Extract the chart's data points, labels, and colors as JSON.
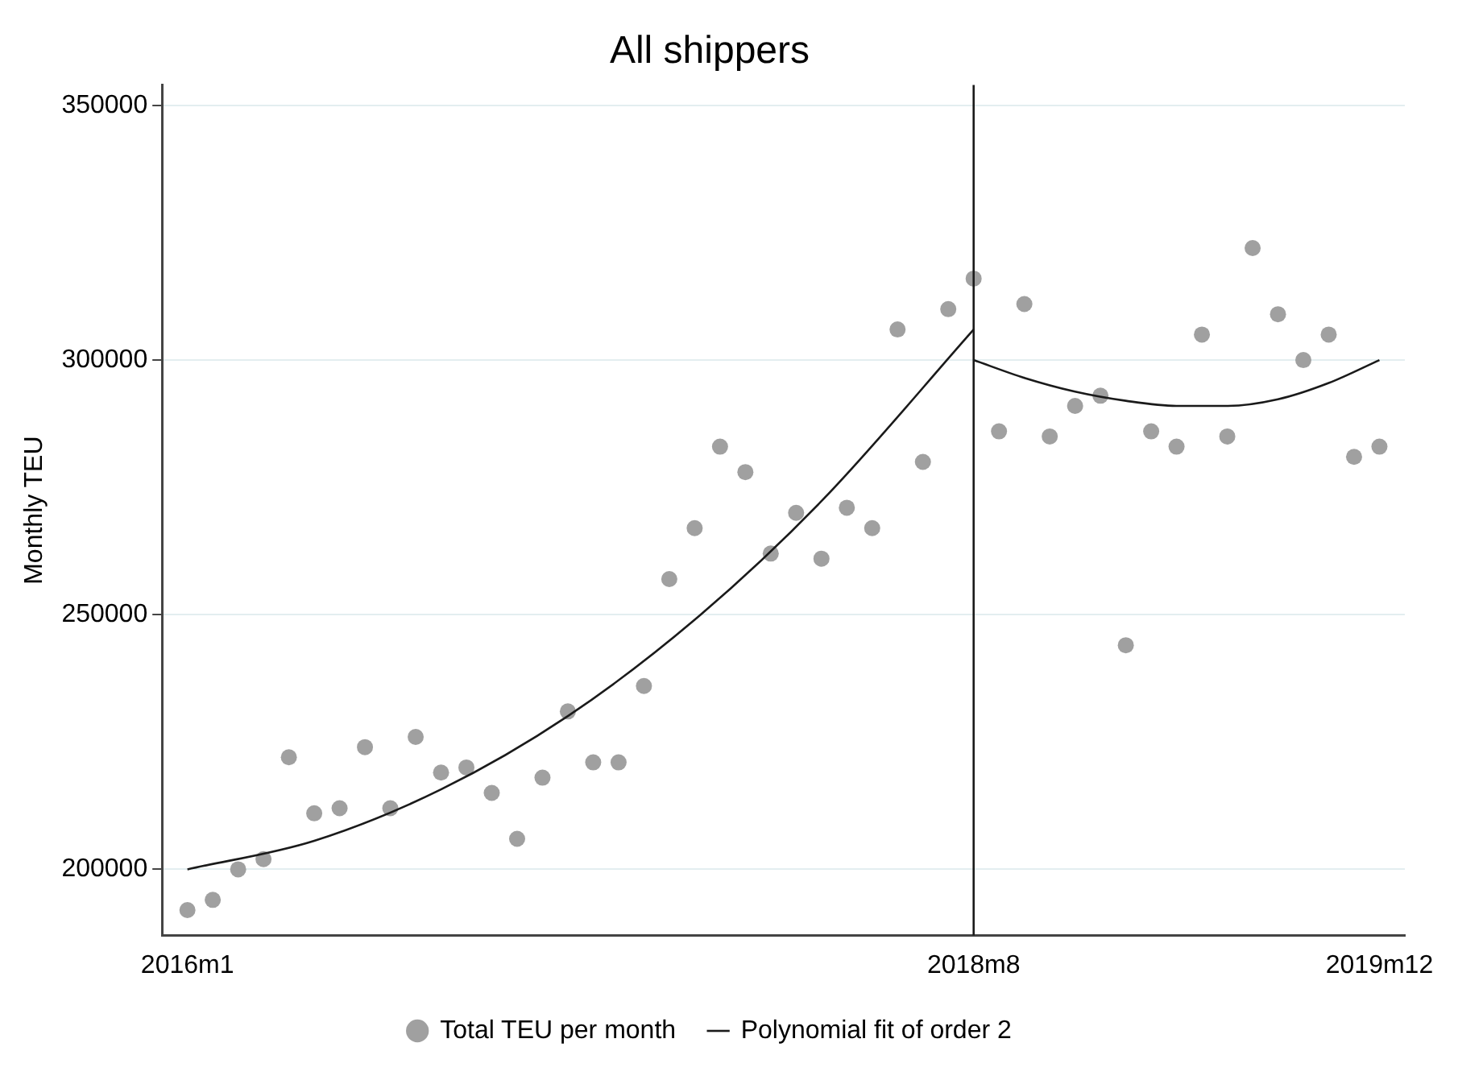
{
  "chart_data": {
    "type": "scatter",
    "title": "All shippers",
    "ylabel": "Monthly TEU",
    "x": [
      "2016-01",
      "2016-02",
      "2016-03",
      "2016-04",
      "2016-05",
      "2016-06",
      "2016-07",
      "2016-08",
      "2016-09",
      "2016-10",
      "2016-11",
      "2016-12",
      "2017-01",
      "2017-02",
      "2017-03",
      "2017-04",
      "2017-05",
      "2017-06",
      "2017-07",
      "2017-08",
      "2017-09",
      "2017-10",
      "2017-11",
      "2017-12",
      "2018-01",
      "2018-02",
      "2018-03",
      "2018-04",
      "2018-05",
      "2018-06",
      "2018-07",
      "2018-08",
      "2018-09",
      "2018-10",
      "2018-11",
      "2018-12",
      "2019-01",
      "2019-02",
      "2019-03",
      "2019-04",
      "2019-05",
      "2019-06",
      "2019-07",
      "2019-08",
      "2019-09",
      "2019-10",
      "2019-11",
      "2019-12"
    ],
    "series": [
      {
        "name": "Total TEU per month",
        "color": "#a0a0a0",
        "marker": "circle",
        "values": [
          192000,
          194000,
          200000,
          202000,
          222000,
          211000,
          212000,
          224000,
          212000,
          226000,
          219000,
          220000,
          215000,
          206000,
          218000,
          231000,
          221000,
          221000,
          236000,
          257000,
          267000,
          283000,
          278000,
          262000,
          270000,
          261000,
          271000,
          267000,
          306000,
          280000,
          310000,
          316000,
          286000,
          311000,
          285000,
          291000,
          293000,
          244000,
          286000,
          283000,
          305000,
          285000,
          322000,
          309000,
          300000,
          305000,
          281000,
          283000
        ]
      },
      {
        "name": "Polynomial fit of order 2",
        "type": "line",
        "color": "#1a1a1a",
        "marker": "none",
        "line_style": "solid",
        "x": [
          "2016-01",
          "2016-06",
          "2016-11",
          "2017-04",
          "2017-09",
          "2018-02",
          "2018-08",
          "2018-08",
          "2018-10",
          "2018-12",
          "2019-02",
          "2019-04",
          "2019-06",
          "2019-08",
          "2019-10",
          "2019-12"
        ],
        "values": [
          200000,
          205600,
          215700,
          230100,
          249000,
          272300,
          306000,
          300000,
          296500,
          293800,
          292000,
          291000,
          291000,
          292300,
          295500,
          300000
        ]
      }
    ],
    "xlim": [
      "2015-12",
      "2020-01"
    ],
    "xticks": [
      {
        "value": "2016-01",
        "label": "2016m1"
      },
      {
        "value": "2018-08",
        "label": "2018m8"
      },
      {
        "value": "2019-12",
        "label": "2019m12"
      }
    ],
    "ylim": [
      187000,
      354000
    ],
    "yticks": [
      200000,
      250000,
      300000,
      350000
    ],
    "ref_lines": [
      {
        "axis": "x",
        "value": "2018-08",
        "color": "#1a1a1a"
      }
    ],
    "grid": "y",
    "legend": "bottom"
  }
}
